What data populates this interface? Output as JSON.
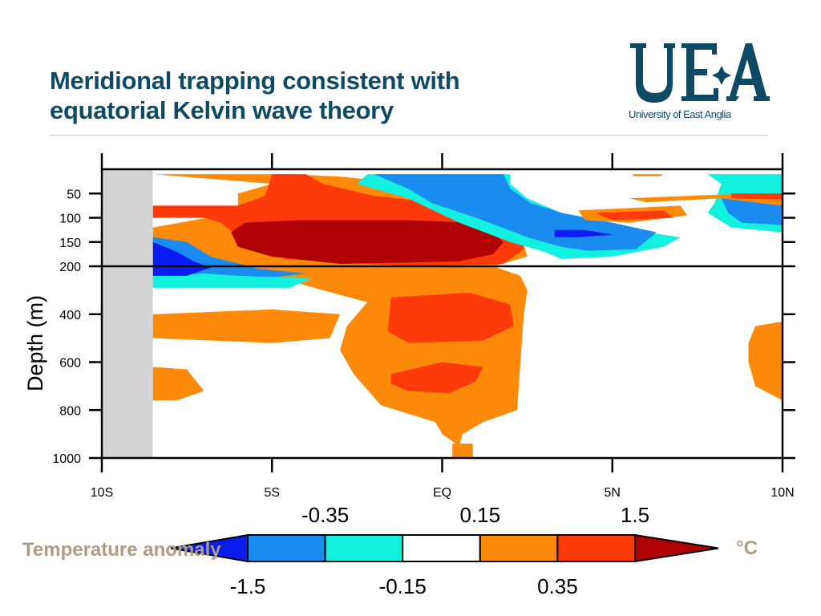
{
  "slide": {
    "title": "Meridional trapping consistent with equatorial Kelvin wave theory"
  },
  "logo": {
    "letters": "UEA",
    "name": "University of East Anglia",
    "color": "#0e4a64"
  },
  "chart_data": {
    "type": "contour",
    "title": "",
    "xlabel": "",
    "ylabel": "Depth (m)",
    "x_ticks": [
      "10S",
      "5S",
      "EQ",
      "5N",
      "10N"
    ],
    "x_range": [
      -10,
      10
    ],
    "y_ticks_upper": [
      50,
      100,
      150,
      200
    ],
    "y_ticks_lower": [
      200,
      400,
      600,
      800,
      1000
    ],
    "y_range_upper": [
      0,
      200
    ],
    "y_range_lower": [
      200,
      1000
    ],
    "land_mask_x": [
      -10,
      -8.5
    ],
    "colorbar": {
      "label": "Temperature anomaly",
      "units": "°C",
      "levels_top": [
        "-0.35",
        "0.15",
        "1.5"
      ],
      "levels_bottom": [
        "-1.5",
        "-0.15",
        "0.35"
      ],
      "colors": [
        "#0a1cf0",
        "#1a8cf0",
        "#12f0e0",
        "#ffffff",
        "#ff8a0a",
        "#ff3a0a",
        "#b00202"
      ]
    },
    "regions": [
      {
        "color": "#ff8a0a",
        "points": [
          [
            -8.5,
            10
          ],
          [
            -4.5,
            10
          ],
          [
            -3,
            15
          ],
          [
            -1,
            30
          ],
          [
            1,
            40
          ],
          [
            2,
            70
          ],
          [
            2.3,
            130
          ],
          [
            2.5,
            180
          ],
          [
            1.5,
            200
          ],
          [
            2.3,
            240
          ],
          [
            2.5,
            300
          ],
          [
            2.4,
            400
          ],
          [
            2.3,
            600
          ],
          [
            2.2,
            800
          ],
          [
            1.2,
            850
          ],
          [
            0.6,
            900
          ],
          [
            0.5,
            950
          ],
          [
            0,
            900
          ],
          [
            -0.2,
            850
          ],
          [
            -1.8,
            780
          ],
          [
            -2.6,
            650
          ],
          [
            -3,
            550
          ],
          [
            -2.8,
            450
          ],
          [
            -2.2,
            350
          ],
          [
            -3.5,
            300
          ],
          [
            -5,
            240
          ],
          [
            -7,
            210
          ],
          [
            -8.5,
            210
          ],
          [
            -8.5,
            120
          ],
          [
            -6.5,
            95
          ],
          [
            -6,
            80
          ],
          [
            -6,
            50
          ],
          [
            -5,
            30
          ]
        ]
      },
      {
        "color": "#ff3a0a",
        "points": [
          [
            -5,
            10
          ],
          [
            -4,
            10
          ],
          [
            -3.5,
            30
          ],
          [
            -2,
            55
          ],
          [
            0,
            70
          ],
          [
            1.5,
            90
          ],
          [
            2.3,
            130
          ],
          [
            2.4,
            165
          ],
          [
            1.8,
            195
          ],
          [
            -1,
            200
          ],
          [
            -4.6,
            185
          ],
          [
            -5.8,
            150
          ],
          [
            -6.5,
            110
          ],
          [
            -7,
            100
          ],
          [
            -8.5,
            100
          ],
          [
            -8.5,
            75
          ],
          [
            -6,
            75
          ],
          [
            -5.2,
            55
          ]
        ]
      },
      {
        "color": "#b00202",
        "points": [
          [
            -6.2,
            130
          ],
          [
            -5.8,
            110
          ],
          [
            -4.2,
            105
          ],
          [
            -1,
            105
          ],
          [
            0.8,
            110
          ],
          [
            1.5,
            130
          ],
          [
            1.8,
            150
          ],
          [
            1.5,
            175
          ],
          [
            0.5,
            190
          ],
          [
            -3,
            195
          ],
          [
            -5,
            180
          ],
          [
            -6,
            160
          ]
        ]
      },
      {
        "color": "#ff3a0a",
        "points": [
          [
            -1.5,
            330
          ],
          [
            0.8,
            310
          ],
          [
            2,
            360
          ],
          [
            2.1,
            450
          ],
          [
            1.2,
            510
          ],
          [
            -1,
            520
          ],
          [
            -1.6,
            470
          ],
          [
            -1.5,
            330
          ]
        ]
      },
      {
        "color": "#ff3a0a",
        "points": [
          [
            -1.5,
            650
          ],
          [
            0,
            600
          ],
          [
            1.2,
            620
          ],
          [
            1,
            680
          ],
          [
            0.2,
            730
          ],
          [
            -1,
            720
          ],
          [
            -1.5,
            690
          ]
        ]
      },
      {
        "color": "#ff8a0a",
        "points": [
          [
            -8.5,
            400
          ],
          [
            -5,
            380
          ],
          [
            -3,
            400
          ],
          [
            -3.3,
            500
          ],
          [
            -5,
            520
          ],
          [
            -8.5,
            500
          ]
        ]
      },
      {
        "color": "#ff8a0a",
        "points": [
          [
            -8.5,
            620
          ],
          [
            -7.5,
            630
          ],
          [
            -7,
            720
          ],
          [
            -7.8,
            760
          ],
          [
            -8.5,
            760
          ]
        ]
      },
      {
        "color": "#1a8cf0",
        "points": [
          [
            -8.5,
            140
          ],
          [
            -7.5,
            150
          ],
          [
            -6.8,
            180
          ],
          [
            -5.4,
            210
          ],
          [
            -4,
            230
          ],
          [
            -6.5,
            270
          ],
          [
            -8.5,
            265
          ]
        ]
      },
      {
        "color": "#12f0e0",
        "points": [
          [
            -8.5,
            240
          ],
          [
            -7,
            230
          ],
          [
            -6,
            240
          ],
          [
            -3.8,
            250
          ],
          [
            -4.5,
            290
          ],
          [
            -8.5,
            290
          ]
        ]
      },
      {
        "color": "#0a1cf0",
        "points": [
          [
            -8.5,
            150
          ],
          [
            -7.8,
            170
          ],
          [
            -7.3,
            190
          ],
          [
            -6.8,
            205
          ],
          [
            -7.5,
            240
          ],
          [
            -8.5,
            240
          ]
        ]
      },
      {
        "color": "#12f0e0",
        "points": [
          [
            -2.2,
            10
          ],
          [
            2,
            10
          ],
          [
            2,
            30
          ],
          [
            2.5,
            60
          ],
          [
            3.5,
            90
          ],
          [
            5,
            110
          ],
          [
            6,
            130
          ],
          [
            7,
            140
          ],
          [
            6.5,
            160
          ],
          [
            5,
            180
          ],
          [
            3.5,
            185
          ],
          [
            3,
            170
          ],
          [
            2,
            150
          ],
          [
            0.5,
            110
          ],
          [
            -1,
            60
          ],
          [
            -2.5,
            30
          ]
        ]
      },
      {
        "color": "#1a8cf0",
        "points": [
          [
            -2,
            10
          ],
          [
            1.8,
            10
          ],
          [
            2,
            40
          ],
          [
            2.6,
            70
          ],
          [
            3.5,
            90
          ],
          [
            5,
            110
          ],
          [
            6.3,
            130
          ],
          [
            5.7,
            165
          ],
          [
            4.3,
            168
          ],
          [
            3.5,
            160
          ],
          [
            2.5,
            140
          ],
          [
            1,
            100
          ],
          [
            -0.3,
            70
          ],
          [
            -1,
            40
          ]
        ]
      },
      {
        "color": "#0a1cf0",
        "points": [
          [
            3.3,
            125
          ],
          [
            4.2,
            125
          ],
          [
            5,
            135
          ],
          [
            4,
            140
          ],
          [
            3.3,
            140
          ]
        ]
      },
      {
        "color": "#ff8a0a",
        "points": [
          [
            4,
            85
          ],
          [
            7,
            75
          ],
          [
            7.2,
            95
          ],
          [
            5.5,
            110
          ],
          [
            4.2,
            105
          ]
        ]
      },
      {
        "color": "#ff3a0a",
        "points": [
          [
            4.5,
            90
          ],
          [
            6.5,
            85
          ],
          [
            6.8,
            100
          ],
          [
            5,
            105
          ]
        ]
      },
      {
        "color": "#12f0e0",
        "points": [
          [
            7.8,
            10
          ],
          [
            10,
            10
          ],
          [
            10,
            130
          ],
          [
            8.5,
            120
          ],
          [
            7.8,
            90
          ],
          [
            8,
            70
          ],
          [
            8.2,
            30
          ]
        ]
      },
      {
        "color": "#1a8cf0",
        "points": [
          [
            8.2,
            60
          ],
          [
            10,
            55
          ],
          [
            10,
            115
          ],
          [
            8.8,
            110
          ],
          [
            8.4,
            90
          ]
        ]
      },
      {
        "color": "#ff8a0a",
        "points": [
          [
            5.5,
            60
          ],
          [
            8.2,
            52
          ],
          [
            10,
            50
          ],
          [
            10,
            75
          ],
          [
            8.2,
            60
          ],
          [
            6,
            68
          ]
        ]
      },
      {
        "color": "#ff3a0a",
        "points": [
          [
            8.5,
            50
          ],
          [
            10,
            50
          ],
          [
            10,
            62
          ],
          [
            8.5,
            60
          ]
        ]
      },
      {
        "color": "#ff8a0a",
        "points": [
          [
            5.6,
            10
          ],
          [
            6.5,
            10
          ],
          [
            6.4,
            14
          ],
          [
            5.6,
            14
          ]
        ]
      },
      {
        "color": "#ff8a0a",
        "points": [
          [
            10,
            430
          ],
          [
            9.2,
            450
          ],
          [
            9,
            520
          ],
          [
            9,
            600
          ],
          [
            9.2,
            700
          ],
          [
            10,
            760
          ]
        ]
      },
      {
        "color": "#ff8a0a",
        "points": [
          [
            0.3,
            940
          ],
          [
            0.9,
            940
          ],
          [
            0.9,
            1000
          ],
          [
            0.3,
            1000
          ]
        ]
      }
    ]
  }
}
